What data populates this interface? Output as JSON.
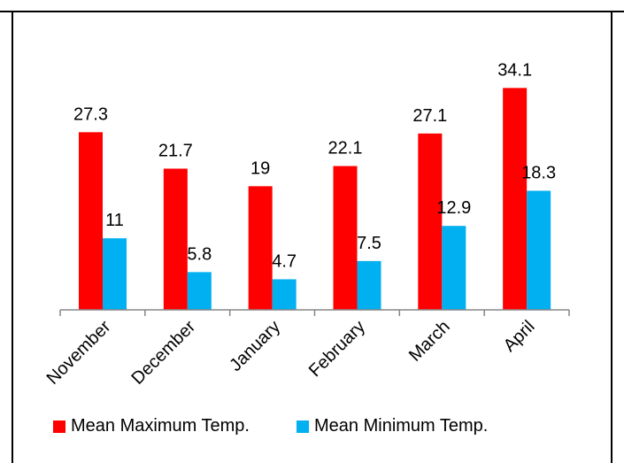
{
  "chart_data": {
    "type": "bar",
    "categories": [
      "November",
      "December",
      "January",
      "February",
      "March",
      "April"
    ],
    "series": [
      {
        "name": "Mean Maximum Temp.",
        "color": "#ff0000",
        "values": [
          27.3,
          21.7,
          19,
          22.1,
          27.1,
          34.1
        ]
      },
      {
        "name": "Mean Minimum Temp.",
        "color": "#00b0f0",
        "values": [
          11,
          5.8,
          4.7,
          7.5,
          12.9,
          18.3
        ]
      }
    ],
    "data_labels": [
      [
        "27.3",
        "21.7",
        "19",
        "22.1",
        "27.1",
        "34.1"
      ],
      [
        "11",
        "5.8",
        "4.7",
        "7.5",
        "12.9",
        "18.3"
      ]
    ],
    "ylim": [
      0,
      40
    ],
    "grid": false,
    "legend_position": "bottom"
  }
}
